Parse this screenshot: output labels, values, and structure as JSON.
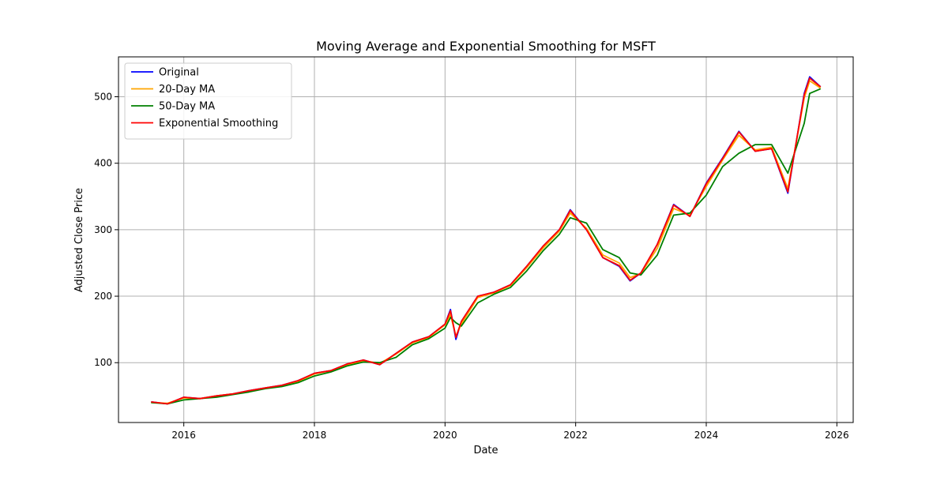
{
  "chart_data": {
    "type": "line",
    "title": "Moving Average and Exponential Smoothing for MSFT",
    "xlabel": "Date",
    "ylabel": "Adjusted Close Price",
    "x_ticks": [
      "2016",
      "2018",
      "2020",
      "2022",
      "2024",
      "2026"
    ],
    "y_ticks": [
      100,
      200,
      300,
      400,
      500
    ],
    "xlim": [
      "2015-01-01",
      "2026-04-01"
    ],
    "ylim": [
      10,
      560
    ],
    "grid": true,
    "legend_position": "upper-left",
    "x": [
      "2015-07",
      "2015-10",
      "2016-01",
      "2016-04",
      "2016-07",
      "2016-10",
      "2017-01",
      "2017-04",
      "2017-07",
      "2017-10",
      "2018-01",
      "2018-04",
      "2018-07",
      "2018-10",
      "2019-01",
      "2019-04",
      "2019-07",
      "2019-10",
      "2020-01",
      "2020-02",
      "2020-03",
      "2020-04",
      "2020-07",
      "2020-10",
      "2021-01",
      "2021-04",
      "2021-07",
      "2021-10",
      "2021-12",
      "2022-03",
      "2022-06",
      "2022-09",
      "2022-11",
      "2023-01",
      "2023-04",
      "2023-07",
      "2023-10",
      "2024-01",
      "2024-04",
      "2024-07",
      "2024-10",
      "2025-01",
      "2025-04",
      "2025-07",
      "2025-08",
      "2025-10"
    ],
    "series": [
      {
        "name": "Original",
        "color": "#0000ff",
        "values": [
          41,
          38,
          48,
          46,
          50,
          53,
          58,
          62,
          66,
          73,
          84,
          88,
          98,
          104,
          97,
          114,
          131,
          139,
          158,
          180,
          135,
          162,
          200,
          206,
          217,
          245,
          275,
          300,
          330,
          300,
          258,
          245,
          223,
          235,
          278,
          338,
          320,
          370,
          408,
          448,
          418,
          422,
          355,
          505,
          530,
          515
        ]
      },
      {
        "name": "20-Day MA",
        "color": "#ffa500",
        "values": [
          40,
          39,
          47,
          46,
          50,
          53,
          57,
          62,
          65,
          72,
          83,
          88,
          97,
          103,
          99,
          113,
          130,
          138,
          157,
          172,
          140,
          158,
          198,
          205,
          216,
          243,
          272,
          298,
          325,
          302,
          262,
          250,
          228,
          234,
          272,
          332,
          322,
          365,
          405,
          442,
          420,
          424,
          362,
          498,
          524,
          513
        ]
      },
      {
        "name": "50-Day MA",
        "color": "#008000",
        "values": [
          40,
          38,
          44,
          46,
          48,
          52,
          56,
          61,
          64,
          70,
          80,
          86,
          95,
          101,
          100,
          108,
          127,
          136,
          152,
          168,
          160,
          155,
          190,
          203,
          213,
          238,
          268,
          293,
          318,
          310,
          270,
          258,
          235,
          232,
          262,
          322,
          325,
          352,
          395,
          415,
          428,
          428,
          385,
          460,
          505,
          512
        ]
      },
      {
        "name": "Exponential Smoothing",
        "color": "#ff0000",
        "values": [
          41,
          38,
          48,
          46,
          50,
          53,
          58,
          62,
          66,
          73,
          84,
          88,
          98,
          104,
          97,
          114,
          131,
          139,
          158,
          178,
          138,
          162,
          200,
          206,
          217,
          245,
          275,
          300,
          329,
          300,
          258,
          246,
          224,
          235,
          278,
          337,
          320,
          369,
          407,
          447,
          418,
          422,
          357,
          503,
          528,
          515
        ]
      }
    ]
  }
}
